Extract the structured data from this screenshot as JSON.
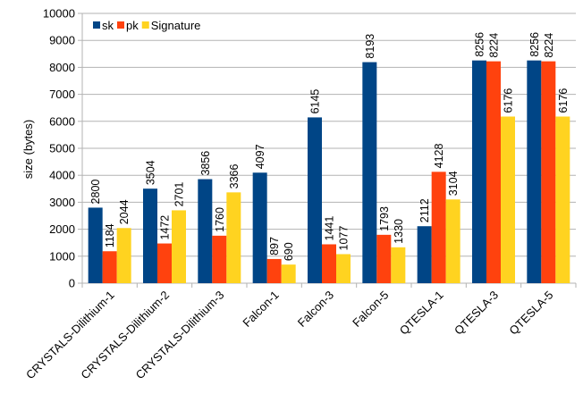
{
  "chart_data": {
    "type": "bar",
    "title": "",
    "xlabel": "",
    "ylabel": "size (bytes)",
    "ylim": [
      0,
      10000
    ],
    "yticks": [
      0,
      1000,
      2000,
      3000,
      4000,
      5000,
      6000,
      7000,
      8000,
      9000,
      10000
    ],
    "grid": true,
    "legend_position": "top-left",
    "categories": [
      "CRYSTALS-Dilithium-1",
      "CRYSTALS-Dilithium-2",
      "CRYSTALS-Dilithium-3",
      "Falcon-1",
      "Falcon-3",
      "Falcon-5",
      "QTESLA-1",
      "QTESLA-3",
      "QTESLA-5"
    ],
    "series": [
      {
        "name": "sk",
        "color": "#004586",
        "values": [
          2800,
          3504,
          3856,
          4097,
          6145,
          8193,
          2112,
          8256,
          8256
        ]
      },
      {
        "name": "pk",
        "color": "#ff420e",
        "values": [
          1184,
          1472,
          1760,
          897,
          1441,
          1793,
          4128,
          8224,
          8224
        ]
      },
      {
        "name": "Signature",
        "color": "#ffd320",
        "values": [
          2044,
          2701,
          3366,
          690,
          1077,
          1330,
          3104,
          6176,
          6176
        ]
      }
    ]
  }
}
